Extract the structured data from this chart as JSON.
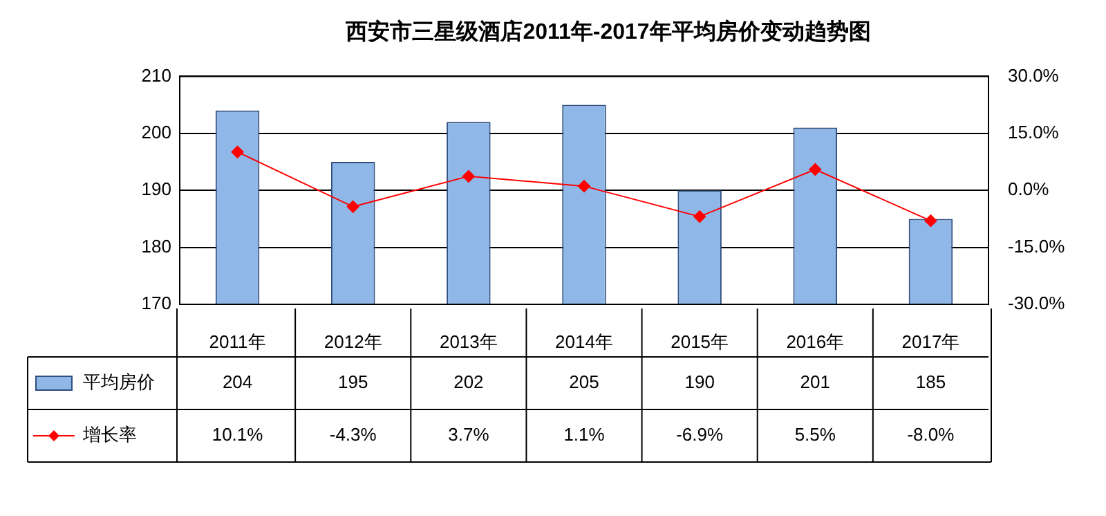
{
  "chart_data": {
    "type": "bar",
    "title": "西安市三星级酒店2011年-2017年平均房价变动趋势图",
    "categories": [
      "2011年",
      "2012年",
      "2013年",
      "2014年",
      "2015年",
      "2016年",
      "2017年"
    ],
    "series": [
      {
        "name": "平均房价",
        "color": "#8fb8e8",
        "values": [
          204,
          195,
          202,
          205,
          190,
          201,
          185
        ]
      },
      {
        "name": "增长率",
        "type": "line",
        "axis": "y2",
        "color": "#ff0000",
        "marker": "diamond",
        "values": [
          10.1,
          -4.3,
          3.7,
          1.1,
          -6.9,
          5.5,
          -8.0
        ],
        "value_labels": [
          "10.1%",
          "-4.3%",
          "3.7%",
          "1.1%",
          "-6.9%",
          "5.5%",
          "-8.0%"
        ]
      }
    ],
    "ylim": [
      170,
      210
    ],
    "yticks": [
      170,
      180,
      190,
      200,
      210
    ],
    "y2lim": [
      -30,
      30
    ],
    "y2ticks": [
      {
        "value": -30,
        "label": "-30.0%"
      },
      {
        "value": -15,
        "label": "-15.0%"
      },
      {
        "value": 0,
        "label": "0.0%"
      },
      {
        "value": 15,
        "label": "15.0%"
      },
      {
        "value": 30,
        "label": "30.0%"
      }
    ],
    "grid": "y",
    "legend": "bottom",
    "data_labels": true
  }
}
